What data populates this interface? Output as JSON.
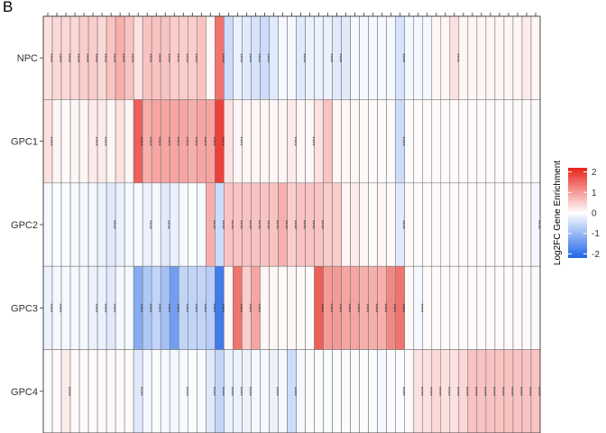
{
  "panel_letter": "B",
  "chart_data": {
    "type": "heatmap",
    "rows": [
      "NPC",
      "GPC1",
      "GPC2",
      "GPC3",
      "GPC4"
    ],
    "n_columns": 55,
    "significance_label": "****",
    "color_scale": {
      "low": "#2166e8",
      "mid": "#ffffff",
      "high": "#e8231b",
      "min": -2.2,
      "max": 2.2
    },
    "legend": {
      "title": "Log2FC Gene Enrichment",
      "ticks": [
        2,
        1,
        0,
        -1,
        -2
      ]
    },
    "values": [
      [
        0.3,
        0.4,
        0.4,
        0.4,
        0.5,
        0.5,
        0.4,
        0.6,
        0.8,
        0.6,
        0.3,
        0.6,
        0.6,
        0.6,
        0.5,
        0.5,
        0.5,
        0.6,
        0.1,
        1.4,
        -0.5,
        -0.2,
        -0.3,
        -0.4,
        -0.5,
        -0.3,
        -0.1,
        -0.1,
        -0.3,
        -0.2,
        -0.2,
        -0.2,
        -0.3,
        -0.3,
        -0.1,
        -0.1,
        -0.1,
        -0.1,
        -0.1,
        -0.4,
        -0.1,
        -0.1,
        -0.1,
        0.1,
        0.1,
        0.3,
        0.1,
        0.1,
        0.1,
        0.1,
        0.1,
        0.1,
        0.1,
        0.2,
        0.1
      ],
      [
        0.3,
        0.1,
        0.05,
        0.1,
        0.1,
        0.2,
        0.2,
        0.1,
        0.3,
        0.1,
        1.6,
        0.8,
        0.9,
        0.9,
        0.9,
        0.9,
        0.8,
        0.9,
        0.9,
        1.9,
        0.3,
        0.1,
        0.1,
        0.1,
        0.1,
        0.1,
        0.1,
        0.2,
        0.1,
        0.1,
        0.3,
        0.6,
        0.1,
        0.1,
        0.1,
        0.05,
        0.05,
        0.05,
        0.05,
        -0.5,
        -0.05,
        0.05,
        0.05,
        0.05,
        0.05,
        0.05,
        0.05,
        0.05,
        0.05,
        0.05,
        0.05,
        0.05,
        0.05,
        0.05,
        0.05
      ],
      [
        -0.1,
        -0.05,
        -0.05,
        -0.1,
        -0.1,
        -0.1,
        -0.2,
        -0.3,
        -0.2,
        -0.1,
        -0.1,
        -0.2,
        -0.1,
        -0.3,
        -0.2,
        -0.1,
        -0.05,
        -0.1,
        0.8,
        -0.5,
        0.6,
        0.6,
        0.6,
        0.6,
        0.6,
        0.6,
        0.8,
        0.5,
        0.6,
        0.6,
        0.6,
        0.5,
        0.5,
        0.1,
        0.2,
        0.1,
        0.05,
        0.1,
        0.05,
        -0.3,
        0.05,
        0.05,
        0.05,
        0.05,
        0.05,
        0.05,
        0.05,
        0.05,
        0.05,
        0.05,
        0.05,
        0.05,
        0.05,
        0.05,
        -0.1
      ],
      [
        -0.2,
        -0.1,
        -0.1,
        -0.1,
        -0.1,
        -0.2,
        -0.2,
        -0.3,
        -0.1,
        -0.1,
        -1.2,
        -0.8,
        -0.6,
        -0.9,
        -1.4,
        -0.6,
        -0.6,
        -0.6,
        -0.7,
        -1.9,
        0.1,
        1.4,
        0.5,
        0.9,
        0.1,
        0.1,
        0.05,
        0.1,
        0.05,
        0.05,
        1.6,
        1.0,
        1.0,
        0.9,
        0.9,
        0.8,
        0.8,
        0.8,
        1.2,
        1.4,
        0.05,
        -0.1,
        0.05,
        0.05,
        0.05,
        0.05,
        0.05,
        0.05,
        0.05,
        0.05,
        0.05,
        0.05,
        0.05,
        0.05,
        0.05
      ],
      [
        0.05,
        0.05,
        0.2,
        0.05,
        0.05,
        0.05,
        0.05,
        0.05,
        0.05,
        0.05,
        -0.3,
        -0.1,
        -0.05,
        -0.1,
        -0.1,
        -0.1,
        -0.05,
        -0.05,
        -0.3,
        -0.6,
        -0.2,
        -0.2,
        -0.2,
        -0.1,
        -0.1,
        -0.2,
        -0.1,
        -0.5,
        -0.1,
        -0.05,
        -0.05,
        -0.05,
        -0.05,
        -0.05,
        -0.05,
        -0.05,
        -0.05,
        -0.1,
        -0.05,
        -0.05,
        0.05,
        0.3,
        0.3,
        0.4,
        0.3,
        0.3,
        0.4,
        0.6,
        0.6,
        0.6,
        0.6,
        0.6,
        0.6,
        0.6,
        0.6
      ]
    ],
    "significant": [
      [
        1,
        1,
        1,
        1,
        1,
        1,
        1,
        1,
        1,
        1,
        0,
        1,
        1,
        1,
        1,
        1,
        1,
        0,
        0,
        1,
        0,
        1,
        1,
        1,
        1,
        0,
        0,
        0,
        1,
        0,
        0,
        1,
        1,
        0,
        0,
        0,
        0,
        0,
        0,
        1,
        0,
        0,
        0,
        0,
        0,
        1,
        0,
        0,
        0,
        0,
        0,
        0,
        0,
        0,
        0
      ],
      [
        1,
        0,
        0,
        0,
        0,
        1,
        1,
        0,
        0,
        0,
        1,
        1,
        1,
        1,
        1,
        1,
        1,
        1,
        1,
        1,
        0,
        1,
        0,
        0,
        0,
        0,
        0,
        1,
        0,
        1,
        0,
        0,
        0,
        0,
        0,
        0,
        0,
        0,
        0,
        1,
        0,
        0,
        0,
        0,
        0,
        0,
        0,
        0,
        0,
        0,
        0,
        0,
        0,
        0,
        0
      ],
      [
        0,
        0,
        0,
        0,
        0,
        0,
        0,
        1,
        0,
        0,
        0,
        1,
        0,
        1,
        0,
        0,
        0,
        0,
        1,
        1,
        1,
        1,
        1,
        1,
        1,
        1,
        1,
        1,
        1,
        1,
        1,
        0,
        0,
        0,
        0,
        0,
        0,
        0,
        0,
        1,
        0,
        0,
        0,
        0,
        0,
        0,
        0,
        0,
        0,
        0,
        0,
        0,
        0,
        0,
        1
      ],
      [
        1,
        1,
        0,
        0,
        0,
        1,
        1,
        1,
        0,
        0,
        1,
        1,
        1,
        1,
        1,
        1,
        1,
        1,
        1,
        1,
        0,
        1,
        1,
        1,
        0,
        0,
        0,
        0,
        0,
        0,
        1,
        1,
        1,
        1,
        1,
        1,
        1,
        1,
        1,
        1,
        0,
        1,
        0,
        0,
        0,
        0,
        0,
        0,
        0,
        0,
        0,
        0,
        0,
        0,
        0
      ],
      [
        0,
        0,
        1,
        0,
        0,
        0,
        0,
        0,
        0,
        0,
        1,
        0,
        0,
        0,
        0,
        1,
        0,
        0,
        1,
        1,
        1,
        1,
        1,
        0,
        0,
        1,
        0,
        1,
        0,
        0,
        0,
        0,
        0,
        0,
        0,
        0,
        0,
        0,
        0,
        1,
        0,
        1,
        1,
        1,
        1,
        1,
        1,
        1,
        1,
        1,
        1,
        1,
        1,
        1,
        1
      ]
    ]
  }
}
